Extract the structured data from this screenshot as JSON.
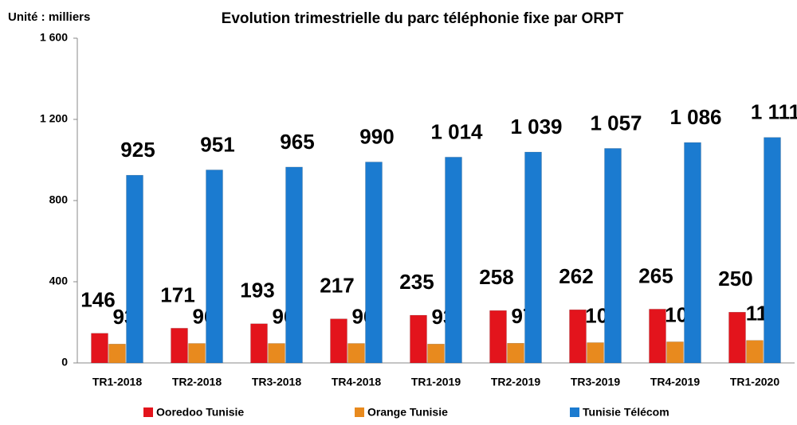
{
  "chart_data": {
    "type": "bar",
    "title": "Evolution trimestrielle du parc téléphonie fixe par ORPT",
    "subtitle": "Unité : milliers",
    "categories": [
      "TR1-2018",
      "TR2-2018",
      "TR3-2018",
      "TR4-2018",
      "TR1-2019",
      "TR2-2019",
      "TR3-2019",
      "TR4-2019",
      "TR1-2020"
    ],
    "series": [
      {
        "name": "Ooredoo Tunisie",
        "color": "#e3141c",
        "values": [
          146,
          171,
          193,
          217,
          235,
          258,
          262,
          265,
          250
        ]
      },
      {
        "name": "Orange Tunisie",
        "color": "#e88a1e",
        "values": [
          93,
          96,
          96,
          96,
          93,
          97,
          100,
          104,
          111
        ]
      },
      {
        "name": "Tunisie Télécom",
        "color": "#1b7bd0",
        "values": [
          925,
          951,
          965,
          990,
          1014,
          1039,
          1057,
          1086,
          1111
        ],
        "value_labels": [
          "925",
          "951",
          "965",
          "990",
          "1 014",
          "1 039",
          "1 057",
          "1 086",
          "1 111"
        ]
      }
    ],
    "ylim": [
      0,
      1600
    ],
    "yticks": [
      0,
      400,
      800,
      {
        "value": 1200,
        "label": "1 200"
      },
      {
        "value": 1600,
        "label": "1 600"
      }
    ],
    "legend": "bottom"
  }
}
